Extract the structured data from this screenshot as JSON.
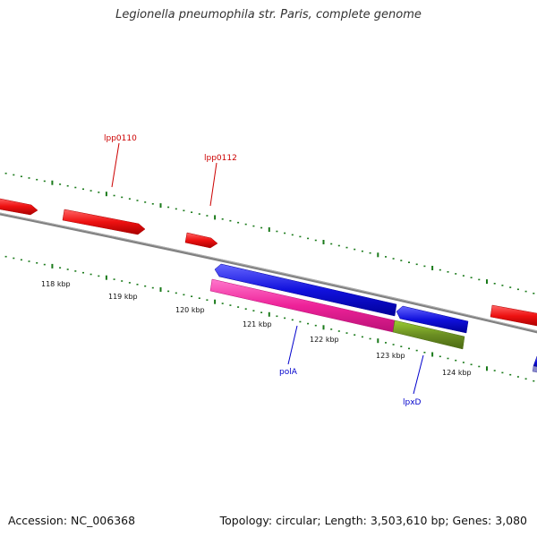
{
  "title": "Legionella pneumophila str. Paris, complete genome",
  "footer": {
    "accession": "Accession: NC_006368",
    "summary": "Topology: circular; Length: 3,503,610 bp; Genes: 3,080"
  },
  "scale_labels": [
    "118 kbp",
    "119 kbp",
    "120 kbp",
    "121 kbp",
    "122 kbp",
    "123 kbp",
    "124 kbp"
  ],
  "gene_labels": [
    {
      "text": "lpp0110",
      "color": "#cc0000"
    },
    {
      "text": "lpp0112",
      "color": "#cc0000"
    },
    {
      "text": "polA",
      "color": "#0000cc"
    },
    {
      "text": "lpxD",
      "color": "#0000cc"
    }
  ],
  "colors": {
    "backbone": "#808080",
    "tick": "#1a7a1a",
    "forward_gene": "#ee1111",
    "reverse_gene": "#1111dd",
    "polA_feature": "#ee2299",
    "lpxD_feature": "#6b8e23"
  }
}
